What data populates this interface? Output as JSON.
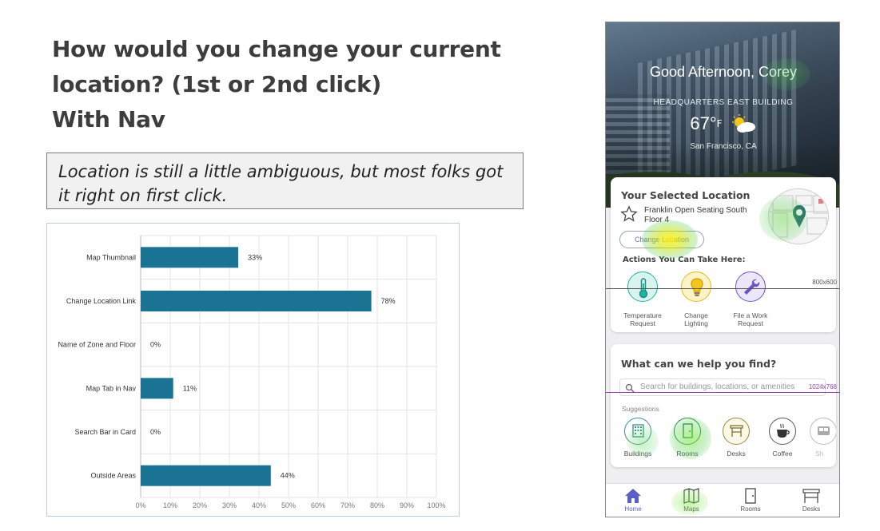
{
  "slide": {
    "heading_lines": [
      "How would you change your current",
      "location? (1st or 2nd click)",
      "With Nav"
    ],
    "note": "Location is still a little ambiguous, but most folks got it right on first click."
  },
  "chart_data": {
    "type": "bar",
    "orientation": "horizontal",
    "categories": [
      "Map Thumbnail",
      "Change Location Link",
      "Name of Zone and Floor",
      "Map Tab in Nav",
      "Search Bar in Card",
      "Outside Areas"
    ],
    "values": [
      33,
      78,
      0,
      11,
      0,
      44
    ],
    "value_labels": [
      "33%",
      "78%",
      "0%",
      "11%",
      "0%",
      "44%"
    ],
    "xlim": [
      0,
      100
    ],
    "xticks": [
      "0%",
      "10%",
      "20%",
      "30%",
      "40%",
      "50%",
      "60%",
      "70%",
      "80%",
      "90%",
      "100%"
    ],
    "bar_color": "#1a7393",
    "grid": true,
    "title": "",
    "xlabel": "",
    "ylabel": ""
  },
  "phone": {
    "greeting": "Good Afternoon, Corey",
    "building": "HEADQUARTERS EAST BUILDING",
    "temperature": "67°",
    "temp_unit": "F",
    "city": "San Francisco, CA",
    "selected_card": {
      "title": "Your Selected Location",
      "location_line1": "Franklin Open Seating South",
      "location_line2": "Floor 4",
      "change_button": "Change Location",
      "actions_label": "Actions You Can Take Here:",
      "actions": [
        {
          "label_line1": "Temperature",
          "label_line2": "Request",
          "icon": "thermometer-icon",
          "color": "#1eb5a6"
        },
        {
          "label_line1": "Change",
          "label_line2": "Lighting",
          "icon": "lightbulb-icon",
          "color": "#e8b81a"
        },
        {
          "label_line1": "File a Work",
          "label_line2": "Request",
          "icon": "wrench-icon",
          "color": "#6a55c8"
        }
      ]
    },
    "find_card": {
      "title": "What can we help you find?",
      "search_placeholder": "Search for buildings, locations, or amenities",
      "suggestions_label": "Suggestions",
      "suggestions": [
        {
          "label": "Buildings",
          "icon": "building-icon"
        },
        {
          "label": "Rooms",
          "icon": "door-icon"
        },
        {
          "label": "Desks",
          "icon": "desk-icon"
        },
        {
          "label": "Coffee",
          "icon": "coffee-icon"
        },
        {
          "label": "Sh",
          "icon": "shuttle-icon"
        }
      ]
    },
    "tabs": [
      {
        "label": "Home",
        "icon": "home-icon",
        "active": true
      },
      {
        "label": "Maps",
        "icon": "map-icon",
        "active": false
      },
      {
        "label": "Rooms",
        "icon": "door-icon",
        "active": false
      },
      {
        "label": "Desks",
        "icon": "desk-icon",
        "active": false
      }
    ],
    "guides": {
      "label_800": "800x600",
      "label_1024": "1024x768"
    },
    "accent_color": "#5b5fc7"
  }
}
